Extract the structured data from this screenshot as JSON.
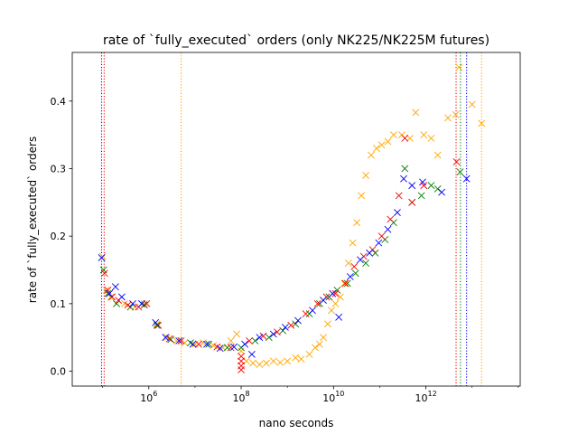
{
  "chart_data": {
    "type": "scatter",
    "title": "rate of `fully_executed` orders (only NK225/NK225M futures)",
    "xlabel": "nano seconds",
    "ylabel": "rate of `fully_executed` orders",
    "xscale": "log",
    "xlim": [
      22000.0,
      110000000000000.0
    ],
    "ylim": [
      -0.022,
      0.472
    ],
    "xticks": [
      {
        "value": 1000000.0,
        "base": "10",
        "exp": "6"
      },
      {
        "value": 100000000.0,
        "base": "10",
        "exp": "8"
      },
      {
        "value": 10000000000.0,
        "base": "10",
        "exp": "10"
      },
      {
        "value": 1000000000000.0,
        "base": "10",
        "exp": "12"
      }
    ],
    "yticks": [
      "0.0",
      "0.1",
      "0.2",
      "0.3",
      "0.4"
    ],
    "ytick_values": [
      0.0,
      0.1,
      0.2,
      0.3,
      0.4
    ],
    "marker": "x",
    "grid": false,
    "vlines": [
      {
        "x": 95000.0,
        "color": "#0000ff"
      },
      {
        "x": 108000.0,
        "color": "#ff0000"
      },
      {
        "x": 5000000.0,
        "color": "#ffa500"
      },
      {
        "x": 4500000000000.0,
        "color": "#ff0000"
      },
      {
        "x": 5600000000000.0,
        "color": "#008000"
      },
      {
        "x": 7600000000000.0,
        "color": "#0000ff"
      },
      {
        "x": 16000000000000.0,
        "color": "#ffa500"
      }
    ],
    "series": [
      {
        "color": "#ffa500",
        "points": [
          [
            100000.0,
            0.17
          ],
          [
            120000.0,
            0.12
          ],
          [
            150000.0,
            0.11
          ],
          [
            200000.0,
            0.1
          ],
          [
            300000.0,
            0.1
          ],
          [
            500000.0,
            0.095
          ],
          [
            800000.0,
            0.1
          ],
          [
            1500000.0,
            0.07
          ],
          [
            2500000.0,
            0.05
          ],
          [
            4000000.0,
            0.045
          ],
          [
            6000000.0,
            0.042
          ],
          [
            10000000.0,
            0.04
          ],
          [
            15000000.0,
            0.042
          ],
          [
            25000000.0,
            0.038
          ],
          [
            40000000.0,
            0.035
          ],
          [
            60000000.0,
            0.045
          ],
          [
            80000000.0,
            0.055
          ],
          [
            100000000.0,
            0.03
          ],
          [
            130000000.0,
            0.015
          ],
          [
            180000000.0,
            0.012
          ],
          [
            250000000.0,
            0.01
          ],
          [
            350000000.0,
            0.012
          ],
          [
            500000000.0,
            0.015
          ],
          [
            700000000.0,
            0.013
          ],
          [
            1000000000.0,
            0.015
          ],
          [
            1500000000.0,
            0.02
          ],
          [
            2000000000.0,
            0.018
          ],
          [
            3000000000.0,
            0.025
          ],
          [
            4000000000.0,
            0.035
          ],
          [
            5000000000.0,
            0.04
          ],
          [
            6000000000.0,
            0.05
          ],
          [
            7500000000.0,
            0.07
          ],
          [
            9000000000.0,
            0.09
          ],
          [
            11000000000.0,
            0.1
          ],
          [
            14000000000.0,
            0.11
          ],
          [
            17000000000.0,
            0.13
          ],
          [
            21000000000.0,
            0.16
          ],
          [
            26000000000.0,
            0.19
          ],
          [
            32000000000.0,
            0.22
          ],
          [
            40000000000.0,
            0.26
          ],
          [
            50000000000.0,
            0.29
          ],
          [
            65000000000.0,
            0.32
          ],
          [
            85000000000.0,
            0.33
          ],
          [
            110000000000.0,
            0.335
          ],
          [
            150000000000.0,
            0.34
          ],
          [
            200000000000.0,
            0.35
          ],
          [
            300000000000.0,
            0.35
          ],
          [
            450000000000.0,
            0.345
          ],
          [
            600000000000.0,
            0.383
          ],
          [
            900000000000.0,
            0.35
          ],
          [
            1300000000000.0,
            0.345
          ],
          [
            1800000000000.0,
            0.32
          ],
          [
            3000000000000.0,
            0.375
          ],
          [
            4400000000000.0,
            0.38
          ],
          [
            5200000000000.0,
            0.45
          ],
          [
            10000000000000.0,
            0.395
          ],
          [
            16000000000000.0,
            0.367
          ]
        ]
      },
      {
        "color": "#008000",
        "points": [
          [
            105000.0,
            0.15
          ],
          [
            130000.0,
            0.115
          ],
          [
            200000.0,
            0.1
          ],
          [
            400000.0,
            0.095
          ],
          [
            800000.0,
            0.098
          ],
          [
            1500000.0,
            0.068
          ],
          [
            3000000.0,
            0.047
          ],
          [
            8000000.0,
            0.042
          ],
          [
            20000000.0,
            0.04
          ],
          [
            50000000.0,
            0.035
          ],
          [
            100000000.0,
            0.035
          ],
          [
            200000000.0,
            0.045
          ],
          [
            400000000.0,
            0.05
          ],
          [
            800000000.0,
            0.06
          ],
          [
            1500000000.0,
            0.07
          ],
          [
            3000000000.0,
            0.085
          ],
          [
            5000000000.0,
            0.1
          ],
          [
            8000000000.0,
            0.11
          ],
          [
            12000000000.0,
            0.12
          ],
          [
            20000000000.0,
            0.13
          ],
          [
            30000000000.0,
            0.145
          ],
          [
            50000000000.0,
            0.16
          ],
          [
            80000000000.0,
            0.175
          ],
          [
            130000000000.0,
            0.195
          ],
          [
            200000000000.0,
            0.22
          ],
          [
            350000000000.0,
            0.3
          ],
          [
            500000000000.0,
            0.25
          ],
          [
            800000000000.0,
            0.26
          ],
          [
            1300000000000.0,
            0.275
          ],
          [
            1800000000000.0,
            0.27
          ],
          [
            5500000000000.0,
            0.295
          ]
        ]
      },
      {
        "color": "#ff0000",
        "points": [
          [
            110000.0,
            0.145
          ],
          [
            130000.0,
            0.12
          ],
          [
            160000.0,
            0.11
          ],
          [
            220000.0,
            0.105
          ],
          [
            350000.0,
            0.098
          ],
          [
            600000.0,
            0.095
          ],
          [
            900000.0,
            0.1
          ],
          [
            1600000.0,
            0.068
          ],
          [
            2800000.0,
            0.048
          ],
          [
            5000000.0,
            0.045
          ],
          [
            12000000.0,
            0.04
          ],
          [
            30000000.0,
            0.036
          ],
          [
            60000000.0,
            0.035
          ],
          [
            100000000.0,
            0.002
          ],
          [
            100000000.0,
            0.008
          ],
          [
            100000000.0,
            0.015
          ],
          [
            100000000.0,
            0.022
          ],
          [
            150000000.0,
            0.045
          ],
          [
            300000000.0,
            0.052
          ],
          [
            600000000.0,
            0.058
          ],
          [
            1200000000.0,
            0.068
          ],
          [
            2500000000.0,
            0.085
          ],
          [
            4500000000.0,
            0.1
          ],
          [
            7000000000.0,
            0.11
          ],
          [
            11000000000.0,
            0.115
          ],
          [
            18000000000.0,
            0.13
          ],
          [
            28000000000.0,
            0.155
          ],
          [
            45000000000.0,
            0.17
          ],
          [
            70000000000.0,
            0.18
          ],
          [
            110000000000.0,
            0.2
          ],
          [
            170000000000.0,
            0.225
          ],
          [
            260000000000.0,
            0.26
          ],
          [
            350000000000.0,
            0.345
          ],
          [
            500000000000.0,
            0.25
          ],
          [
            900000000000.0,
            0.275
          ],
          [
            4600000000000.0,
            0.31
          ]
        ]
      },
      {
        "color": "#0000ff",
        "points": [
          [
            95000.0,
            0.168
          ],
          [
            140000.0,
            0.115
          ],
          [
            190000.0,
            0.125
          ],
          [
            260000.0,
            0.11
          ],
          [
            450000.0,
            0.1
          ],
          [
            700000.0,
            0.1
          ],
          [
            1400000.0,
            0.072
          ],
          [
            2300000.0,
            0.05
          ],
          [
            4500000.0,
            0.045
          ],
          [
            9000000.0,
            0.04
          ],
          [
            18000000.0,
            0.04
          ],
          [
            35000000.0,
            0.034
          ],
          [
            70000000.0,
            0.036
          ],
          [
            120000000.0,
            0.04
          ],
          [
            170000000.0,
            0.025
          ],
          [
            250000000.0,
            0.05
          ],
          [
            500000000.0,
            0.055
          ],
          [
            900000000.0,
            0.065
          ],
          [
            1700000000.0,
            0.075
          ],
          [
            3500000000.0,
            0.09
          ],
          [
            6000000000.0,
            0.105
          ],
          [
            9500000000.0,
            0.115
          ],
          [
            13000000000.0,
            0.08
          ],
          [
            23000000000.0,
            0.14
          ],
          [
            38000000000.0,
            0.165
          ],
          [
            60000000000.0,
            0.175
          ],
          [
            95000000000.0,
            0.19
          ],
          [
            150000000000.0,
            0.21
          ],
          [
            240000000000.0,
            0.235
          ],
          [
            330000000000.0,
            0.285
          ],
          [
            500000000000.0,
            0.275
          ],
          [
            850000000000.0,
            0.28
          ],
          [
            2200000000000.0,
            0.265
          ],
          [
            7600000000000.0,
            0.285
          ]
        ]
      }
    ]
  }
}
